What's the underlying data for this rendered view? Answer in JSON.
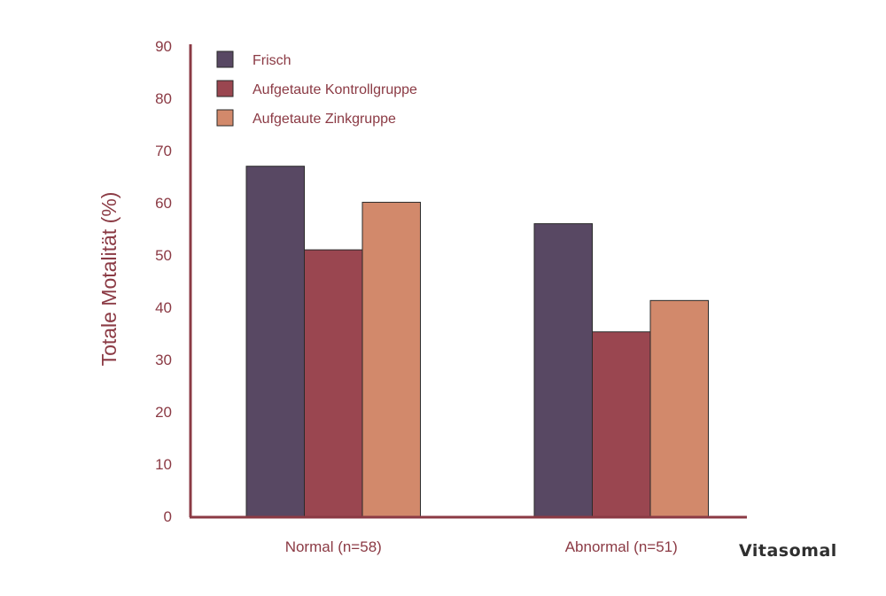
{
  "logo": "Vitasomal",
  "chart_data": {
    "type": "bar",
    "categories": [
      "Normal (n=58)",
      "Abnormal (n=51)"
    ],
    "series": [
      {
        "name": "Frisch",
        "values": [
          67,
          56
        ],
        "color": "#584863"
      },
      {
        "name": "Aufgetaute Kontrollgruppe",
        "values": [
          51,
          35.3
        ],
        "color": "#9a4650"
      },
      {
        "name": "Aufgetaute Zinkgruppe",
        "values": [
          60.1,
          41.3
        ],
        "color": "#d2896b"
      }
    ],
    "ylabel": "Totale Motalität (%)",
    "xlabel": "",
    "ylim": [
      0,
      90
    ],
    "yticks": [
      0,
      10,
      20,
      30,
      40,
      50,
      60,
      70,
      80,
      90
    ],
    "legend": "top-left",
    "grid": false,
    "axis_color": "#8b3a44"
  }
}
